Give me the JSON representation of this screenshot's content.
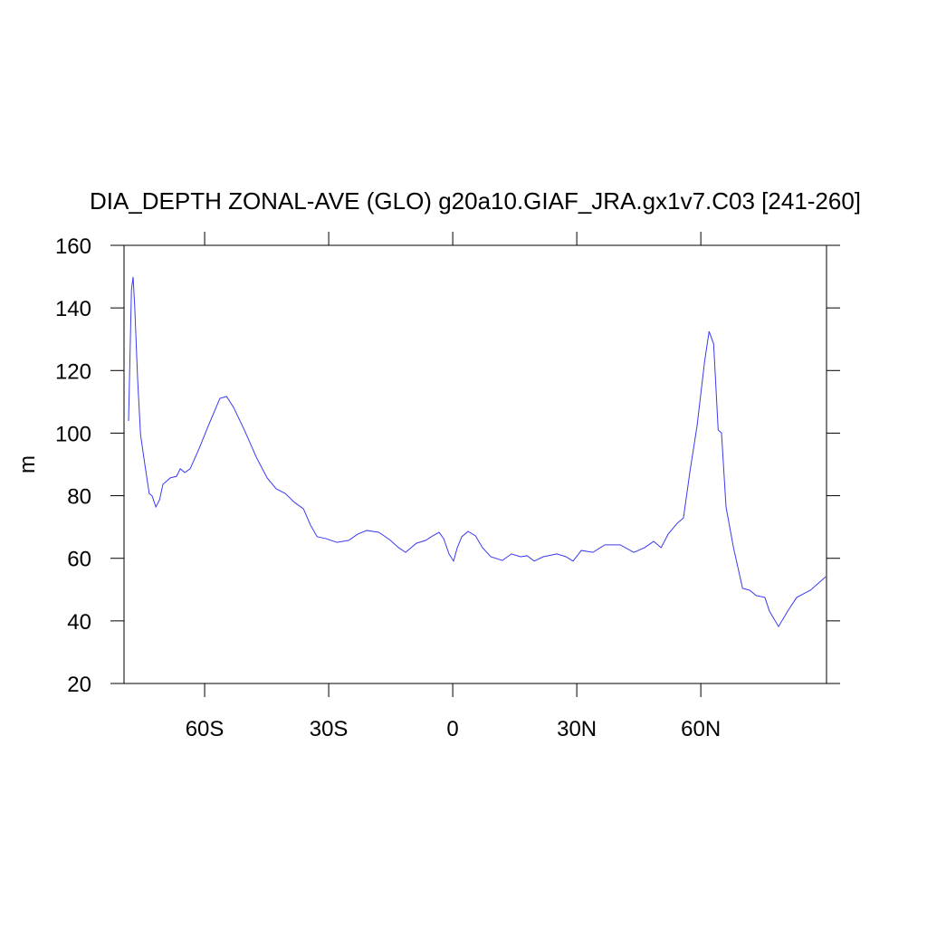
{
  "chart_data": {
    "type": "line",
    "title": "DIA_DEPTH ZONAL-AVE (GLO) g20a10.GIAF_JRA.gx1v7.C03 [241-260]",
    "y_label": "m",
    "xlim": [
      -79.5,
      90.4
    ],
    "ylim": [
      20,
      160
    ],
    "xticks": [
      {
        "value": -60,
        "label": "60S"
      },
      {
        "value": -30,
        "label": "30S"
      },
      0,
      {
        "value": 30,
        "label": "30N"
      },
      {
        "value": 60,
        "label": "60N"
      }
    ],
    "yticks": [
      20,
      40,
      60,
      80,
      100,
      120,
      140,
      160
    ],
    "x": [
      -78.4,
      -77.7,
      -77.3,
      -76.9,
      -76.2,
      -75.5,
      -74.4,
      -73.4,
      -72.7,
      -71.8,
      -70.9,
      -70.1,
      -68.3,
      -66.8,
      -65.9,
      -64.8,
      -63.5,
      -61.3,
      -59.1,
      -56.3,
      -54.7,
      -53.0,
      -50.4,
      -47.5,
      -44.9,
      -42.7,
      -40.5,
      -38.3,
      -36.1,
      -34.4,
      -32.8,
      -30.7,
      -28.0,
      -25.2,
      -23.0,
      -20.8,
      -17.9,
      -15.3,
      -13.1,
      -11.4,
      -8.8,
      -6.6,
      -4.8,
      -3.3,
      -2.2,
      -0.9,
      0.2,
      1.1,
      2.2,
      3.7,
      5.5,
      7.2,
      9.2,
      12.0,
      14.2,
      16.4,
      18.0,
      19.7,
      21.9,
      25.2,
      27.4,
      29.1,
      31.1,
      33.9,
      36.8,
      40.5,
      43.8,
      46.4,
      48.6,
      50.4,
      52.1,
      54.3,
      55.8,
      57.4,
      59.1,
      60.9,
      62.0,
      63.1,
      64.2,
      65.0,
      66.1,
      67.9,
      70.1,
      71.8,
      73.4,
      75.5,
      76.6,
      78.8,
      81.0,
      83.2,
      86.5,
      90.2
    ],
    "series": [
      {
        "color": "#3a3af0",
        "values": [
          103.9,
          145.8,
          149.9,
          140,
          117,
          99.5,
          89.4,
          80.7,
          79.9,
          76.4,
          78.7,
          83.6,
          85.7,
          86.2,
          88.6,
          87.4,
          88.6,
          95.2,
          102.4,
          111.1,
          111.7,
          108.2,
          101,
          92.3,
          85.7,
          82.2,
          80.7,
          77.9,
          75.8,
          70.6,
          66.9,
          66.3,
          65.1,
          65.7,
          67.7,
          68.9,
          68.3,
          66,
          63.4,
          61.9,
          64.8,
          65.7,
          67.2,
          68.3,
          66.3,
          61.4,
          59.1,
          63.4,
          66.9,
          68.6,
          67.2,
          63.4,
          60.5,
          59.3,
          61.4,
          60.5,
          60.8,
          59.1,
          60.5,
          61.4,
          60.5,
          59.1,
          62.5,
          61.9,
          64.3,
          64.3,
          61.9,
          63.4,
          65.4,
          63.4,
          67.7,
          71.2,
          72.9,
          88,
          102.4,
          122.7,
          132.5,
          128.5,
          101,
          100.1,
          76.4,
          63.4,
          50.4,
          49.8,
          48.1,
          47.5,
          43.1,
          38.2,
          43.1,
          47.5,
          49.8,
          54.1
        ]
      }
    ]
  }
}
